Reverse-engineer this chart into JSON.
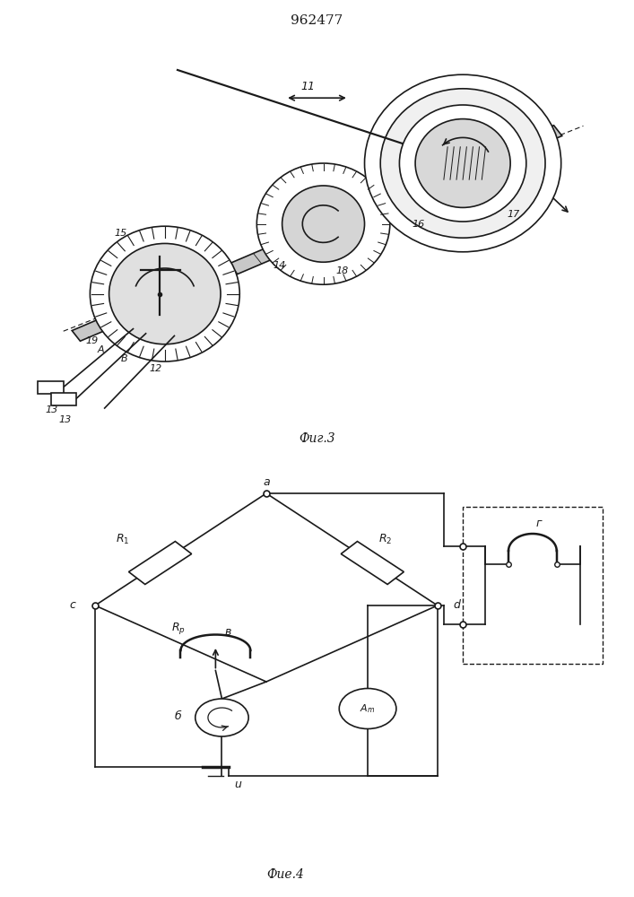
{
  "title": "962477",
  "fig3_caption": "Фиг.3",
  "fig4_caption": "Фие.4",
  "bg_color": "#ffffff",
  "line_color": "#1a1a1a"
}
